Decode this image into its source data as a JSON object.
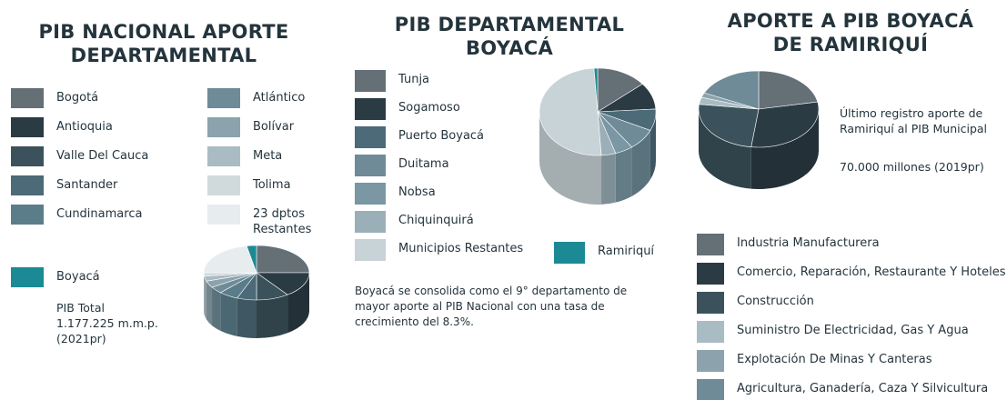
{
  "chart_data": [
    {
      "type": "pie",
      "title": "PIB NACIONAL APORTE DEPARTAMENTAL",
      "categories": [
        "Bogotá",
        "Antioquia",
        "Valle Del Cauca",
        "Santander",
        "Cundinamarca",
        "Atlántico",
        "Bolívar",
        "Meta",
        "Tolima",
        "23 dptos\nRestantes",
        "Boyacá"
      ],
      "values": [
        25,
        15,
        10,
        6,
        6,
        4,
        4,
        3,
        2,
        22,
        3
      ],
      "colors": [
        "#646f76",
        "#2b3b44",
        "#3b525c",
        "#4c6a77",
        "#5b7d8a",
        "#6e8b97",
        "#8ca3ad",
        "#aabcc3",
        "#d0dadd",
        "#e7ecee",
        "#1b8a94"
      ],
      "annotations": [
        "PIB Total\n1.177.225 m.m.p.\n(2021pr)"
      ]
    },
    {
      "type": "pie",
      "title": "PIB DEPARTAMENTAL BOYACÁ",
      "categories": [
        "Tunja",
        "Sogamoso",
        "Puerto Boyacá",
        "Duitama",
        "Nobsa",
        "Chiquinquirá",
        "Municipios Restantes",
        "Ramiriquí"
      ],
      "values": [
        14,
        10,
        8,
        8,
        5,
        4,
        50,
        1
      ],
      "colors": [
        "#646f76",
        "#2b3b44",
        "#4c6a77",
        "#6e8b97",
        "#7a97a3",
        "#9aafb7",
        "#c8d3d7",
        "#1b8a94"
      ],
      "annotations": [
        "Boyacá se consolida como el 9° departamento de mayor aporte al PIB Nacional con una tasa de crecimiento del 8.3%."
      ]
    },
    {
      "type": "pie",
      "title": "APORTE A PIB BOYACÁ DE RAMIRIQUÍ",
      "categories": [
        "Industria Manufacturera",
        "Comercio, Reparación, Restaurante Y Hoteles",
        "Construcción",
        "Suministro De Electricidad, Gas Y Agua",
        "Explotación De Minas Y Canteras",
        "Agricultura, Ganadería, Caza Y Silvicultura"
      ],
      "values": [
        22,
        30,
        25,
        3,
        2,
        18
      ],
      "colors": [
        "#646f76",
        "#2b3b44",
        "#3b525c",
        "#aabcc3",
        "#8ca3ad",
        "#6e8b97"
      ],
      "annotations": [
        "Último registro aporte de Ramiriquí al PIB Municipal",
        "70.000 millones (2019pr)"
      ]
    }
  ]
}
